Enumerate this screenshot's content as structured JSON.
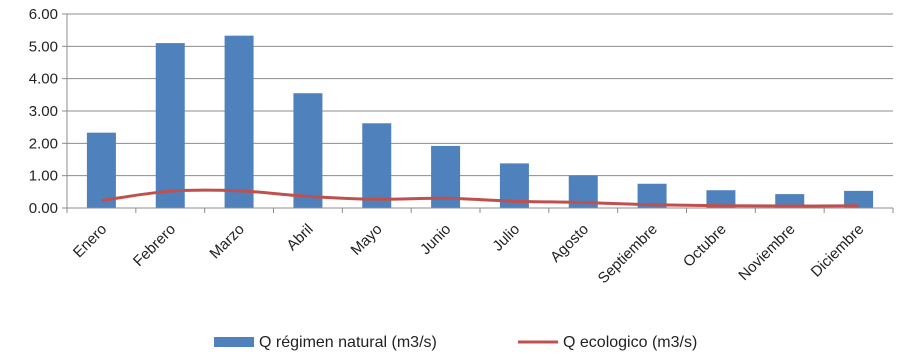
{
  "chart_data": {
    "type": "bar",
    "categories": [
      "Enero",
      "Febrero",
      "Marzo",
      "Abril",
      "Mayo",
      "Junio",
      "Julio",
      "Agosto",
      "Septiembre",
      "Octubre",
      "Noviembre",
      "Diciembre"
    ],
    "series": [
      {
        "name": "Q régimen natural (m3/s)",
        "kind": "bar",
        "color": "#4f81bd",
        "values": [
          2.33,
          5.1,
          5.33,
          3.55,
          2.62,
          1.92,
          1.38,
          1.01,
          0.75,
          0.55,
          0.43,
          0.53
        ]
      },
      {
        "name": "Q ecologico (m3/s)",
        "kind": "line",
        "color": "#c0504d",
        "values": [
          0.23,
          0.52,
          0.53,
          0.36,
          0.27,
          0.3,
          0.21,
          0.17,
          0.1,
          0.07,
          0.06,
          0.07
        ]
      }
    ],
    "yticks": [
      "0.00",
      "1.00",
      "2.00",
      "3.00",
      "4.00",
      "5.00",
      "6.00"
    ],
    "ylim": [
      0,
      6
    ],
    "grid": true,
    "legend": "bottom",
    "title": "",
    "xlabel": "",
    "ylabel": ""
  }
}
